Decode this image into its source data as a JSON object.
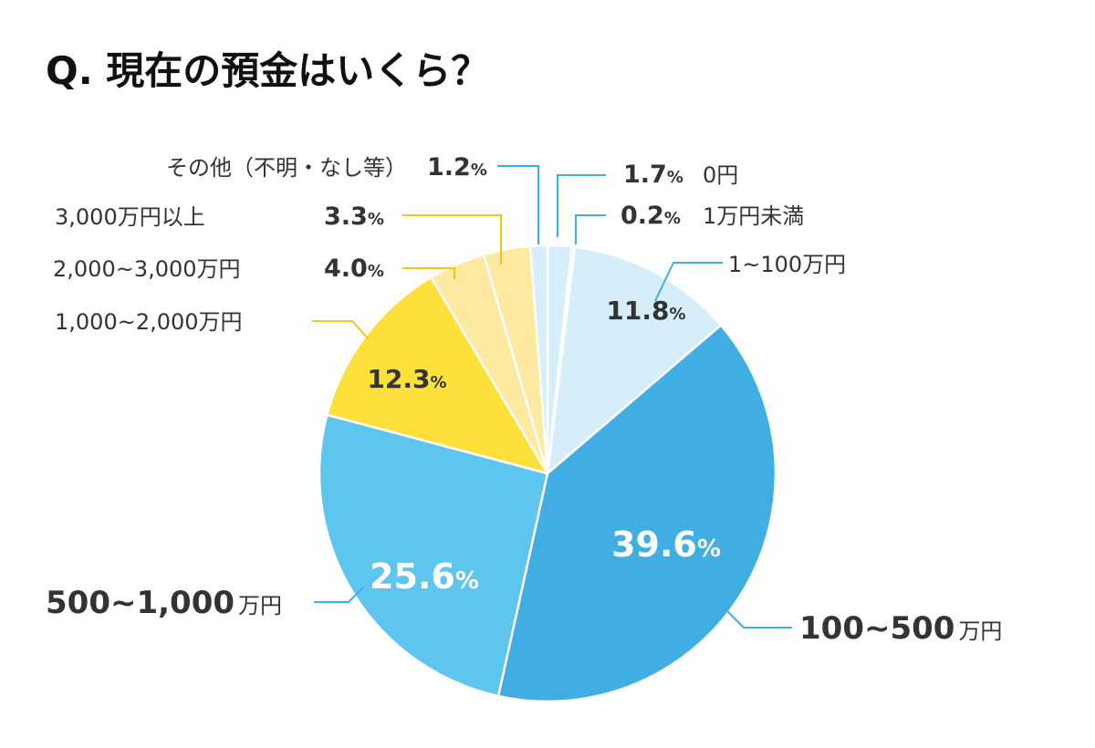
{
  "chart_data": {
    "type": "pie",
    "title": "Q. 現在の預金はいくら？",
    "slices": [
      {
        "label": "0円",
        "value": 1.7,
        "value_text": "1.7",
        "color": "#d6eefa"
      },
      {
        "label": "1万円未満",
        "value": 0.2,
        "value_text": "0.2",
        "color": "#d6eefa"
      },
      {
        "label": "1~100万円",
        "value": 11.8,
        "value_text": "11.8",
        "color": "#d6eefa"
      },
      {
        "label": "100~500",
        "unit": "万円",
        "value": 39.6,
        "value_text": "39.6",
        "color": "#41aee3"
      },
      {
        "label": "500~1,000",
        "unit": "万円",
        "value": 25.6,
        "value_text": "25.6",
        "color": "#5ec5ef"
      },
      {
        "label": "1,000~2,000万円",
        "value": 12.3,
        "value_text": "12.3",
        "color": "#fde03a"
      },
      {
        "label": "2,000~3,000万円",
        "value": 4.0,
        "value_text": "4.0",
        "color": "#fdeaa0"
      },
      {
        "label": "3,000万円以上",
        "value": 3.3,
        "value_text": "3.3",
        "color": "#fdeaa0"
      },
      {
        "label": "その他（不明・なし等）",
        "value": 1.2,
        "value_text": "1.2",
        "color": "#d6eefa"
      }
    ],
    "percent_symbol": "%",
    "leader_colors": {
      "blue": "#41aee3",
      "yellow": "#f5c518"
    }
  }
}
